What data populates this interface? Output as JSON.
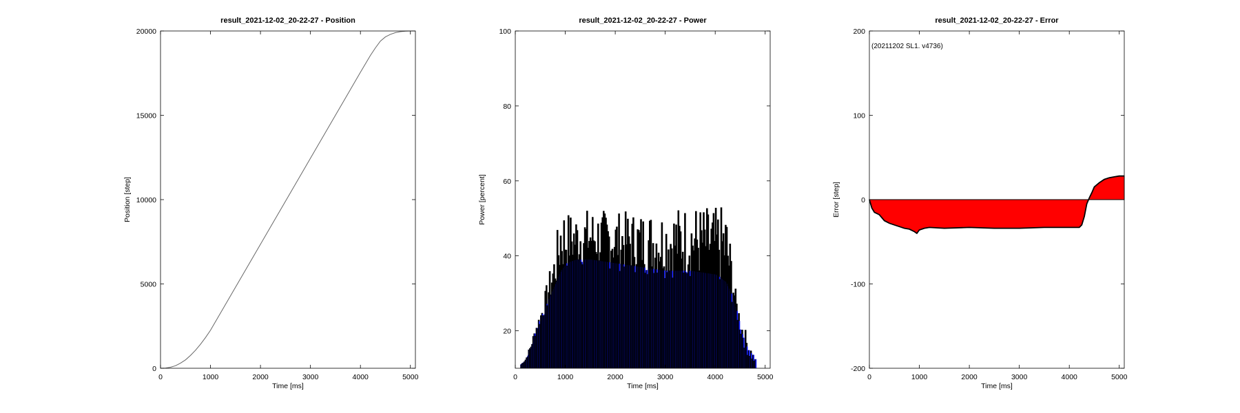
{
  "chart_data": [
    {
      "type": "line",
      "title": "result_2021-12-02_20-22-27 - Position",
      "xlabel": "Time [ms]",
      "ylabel": "Position [step]",
      "xlim": [
        0,
        5100
      ],
      "ylim": [
        0,
        20000
      ],
      "xticks": [
        0,
        1000,
        2000,
        3000,
        4000,
        5000
      ],
      "yticks": [
        0,
        5000,
        10000,
        15000,
        20000
      ],
      "grid": false,
      "line_color": "#666666",
      "series": [
        {
          "x": [
            0,
            100,
            200,
            300,
            400,
            500,
            600,
            700,
            800,
            900,
            1000,
            1500,
            2000,
            2500,
            3000,
            3500,
            4000,
            4200,
            4300,
            4400,
            4500,
            4600,
            4700,
            4800,
            4900,
            5000,
            5100
          ],
          "values": [
            0,
            10,
            60,
            150,
            300,
            500,
            760,
            1070,
            1420,
            1820,
            2250,
            4800,
            7350,
            9900,
            12450,
            15000,
            17550,
            18550,
            19000,
            19400,
            19650,
            19800,
            19900,
            19960,
            19990,
            20000,
            20000
          ]
        }
      ]
    },
    {
      "type": "area",
      "title": "result_2021-12-02_20-22-27 - Power",
      "xlabel": "Time [ms]",
      "ylabel": "Power [percent]",
      "xlim": [
        0,
        5100
      ],
      "ylim": [
        10,
        100
      ],
      "xticks": [
        0,
        1000,
        2000,
        3000,
        4000,
        5000
      ],
      "yticks": [
        20,
        40,
        60,
        80,
        100
      ],
      "grid": false,
      "fill_color": "#0a14ff",
      "line_color": "#000000",
      "series": [
        {
          "x": [
            100,
            200,
            300,
            400,
            500,
            600,
            700,
            800,
            900,
            1000,
            1200,
            1500,
            2000,
            2500,
            3000,
            3500,
            4000,
            4200,
            4300,
            4400,
            4500,
            4600,
            4700,
            4800
          ],
          "values": [
            11,
            12,
            15,
            19,
            22,
            25,
            28,
            31,
            34,
            36,
            37,
            37,
            36,
            35,
            34,
            34,
            33,
            31,
            28,
            24,
            18,
            14,
            12,
            11
          ],
          "peaks": [
            11,
            13,
            17,
            22,
            26,
            32,
            38,
            44,
            56,
            52,
            52,
            53,
            52,
            52,
            53,
            54,
            53,
            54,
            43,
            30,
            24,
            20,
            16,
            12
          ]
        }
      ]
    },
    {
      "type": "area",
      "title": "result_2021-12-02_20-22-27 - Error",
      "xlabel": "Time [ms]",
      "ylabel": "Error [step]",
      "xlim": [
        0,
        5100
      ],
      "ylim": [
        -200,
        200
      ],
      "xticks": [
        0,
        1000,
        2000,
        3000,
        4000,
        5000
      ],
      "yticks": [
        -200,
        -100,
        0,
        100,
        200
      ],
      "grid": false,
      "annotation": "(20211202 SL1. v4736)",
      "fill_color": "#ff0000",
      "line_color": "#000000",
      "series": [
        {
          "x": [
            0,
            50,
            100,
            200,
            300,
            400,
            500,
            600,
            700,
            800,
            900,
            950,
            1000,
            1100,
            1200,
            1500,
            2000,
            2500,
            3000,
            3500,
            4000,
            4200,
            4250,
            4300,
            4350,
            4400,
            4450,
            4500,
            4600,
            4700,
            4800,
            4900,
            5000,
            5100
          ],
          "values": [
            0,
            -10,
            -15,
            -18,
            -25,
            -28,
            -30,
            -32,
            -34,
            -35,
            -38,
            -40,
            -36,
            -34,
            -33,
            -34,
            -33,
            -34,
            -34,
            -33,
            -33,
            -33,
            -30,
            -20,
            -5,
            2,
            8,
            15,
            20,
            24,
            26,
            27,
            28,
            28
          ]
        }
      ]
    }
  ]
}
